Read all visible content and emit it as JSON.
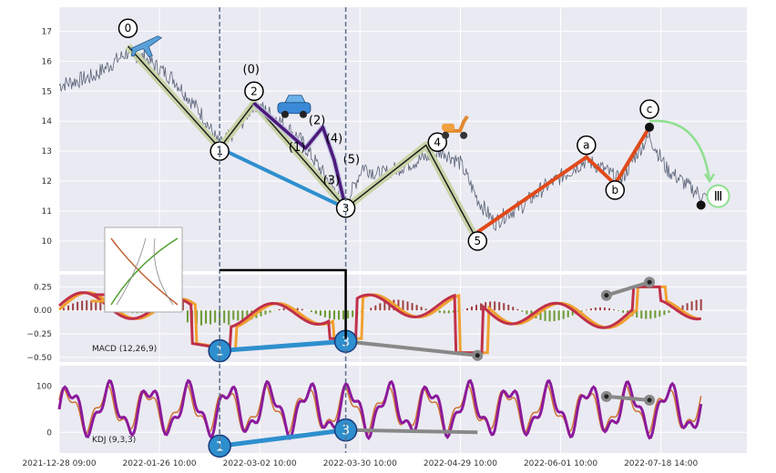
{
  "chart_data": {
    "type": "line",
    "x_tick_labels": [
      "2021-12-28 09:00",
      "2022-01-26 10:00",
      "2022-03-02 10:00",
      "2022-03-30 10:00",
      "2022-04-29 10:00",
      "2022-06-01 10:00",
      "2022-07-18 14:00"
    ],
    "price_panel": {
      "y_ticks": [
        10,
        11,
        12,
        13,
        14,
        15,
        16,
        17
      ],
      "ylim": [
        9,
        17.8
      ],
      "price_path": [
        [
          0,
          15.2
        ],
        [
          6,
          15.5
        ],
        [
          12,
          16.3
        ],
        [
          15,
          16.1
        ],
        [
          20,
          15.4
        ],
        [
          25,
          14.2
        ],
        [
          28,
          13.2
        ],
        [
          31,
          13.7
        ],
        [
          34,
          14.6
        ],
        [
          38,
          14.1
        ],
        [
          42,
          13.4
        ],
        [
          47,
          12.0
        ],
        [
          50,
          11.2
        ],
        [
          53,
          12.5
        ],
        [
          56,
          12.2
        ],
        [
          60,
          12.5
        ],
        [
          64,
          12.8
        ],
        [
          67,
          13.0
        ],
        [
          70,
          12.6
        ],
        [
          73,
          11.4
        ],
        [
          76,
          10.6
        ],
        [
          78,
          10.9
        ],
        [
          81,
          11.2
        ],
        [
          84,
          11.7
        ],
        [
          88,
          12.2
        ],
        [
          92,
          12.7
        ],
        [
          95,
          12.4
        ],
        [
          98,
          12.0
        ],
        [
          101,
          13.0
        ],
        [
          103,
          13.5
        ],
        [
          106,
          12.4
        ],
        [
          110,
          11.8
        ],
        [
          113,
          11.4
        ]
      ],
      "wave_lines": [
        {
          "points": [
            [
              12,
              16.5
            ],
            [
              28,
              13.1
            ],
            [
              34,
              14.6
            ],
            [
              50,
              11.1
            ],
            [
              64,
              13.2
            ],
            [
              73,
              10.0
            ]
          ]
        },
        {
          "points": [
            [
              34,
              14.6
            ],
            [
              43,
              13.1
            ],
            [
              46,
              13.8
            ],
            [
              48,
              12.7
            ],
            [
              50,
              11.1
            ]
          ]
        },
        {
          "points": [
            [
              28,
              13.1
            ],
            [
              50,
              11.1
            ]
          ]
        },
        {
          "points": [
            [
              73,
              10.3
            ],
            [
              92,
              12.8
            ],
            [
              97,
              11.9
            ],
            [
              103,
              13.8
            ]
          ]
        }
      ],
      "wave_labels": [
        {
          "text": "0",
          "x": 12,
          "y": 17.1
        },
        {
          "text": "1",
          "x": 28,
          "y": 13.0
        },
        {
          "text": "2",
          "x": 34,
          "y": 15.0
        },
        {
          "text": "3",
          "x": 50,
          "y": 11.1
        },
        {
          "text": "4",
          "x": 66,
          "y": 13.3
        },
        {
          "text": "5",
          "x": 73,
          "y": 10.0
        },
        {
          "text": "a",
          "x": 92,
          "y": 13.2
        },
        {
          "text": "b",
          "x": 97,
          "y": 11.7
        },
        {
          "text": "c",
          "x": 103,
          "y": 14.4
        }
      ],
      "sub_labels": [
        {
          "text": "(0)",
          "x": 33.5,
          "y": 15.6
        },
        {
          "text": "(1)",
          "x": 41.5,
          "y": 13.0
        },
        {
          "text": "(2)",
          "x": 45,
          "y": 13.9
        },
        {
          "text": "(3)",
          "x": 47.5,
          "y": 11.9
        },
        {
          "text": "(4)",
          "x": 48,
          "y": 13.3
        },
        {
          "text": "(5)",
          "x": 51,
          "y": 12.6
        }
      ],
      "roman_label": "Ⅲ"
    },
    "macd_panel": {
      "label": "MACD (12,26,9)",
      "y_ticks": [
        0.25,
        0.0,
        -0.25,
        -0.5
      ],
      "y_tick_labels": [
        "0.25",
        "0.00",
        "−0.25",
        "−0.50"
      ],
      "ylim": [
        -0.55,
        0.38
      ],
      "markers": [
        {
          "text": "1",
          "x": 28,
          "y": -0.43
        },
        {
          "text": "3",
          "x": 50,
          "y": -0.33
        }
      ]
    },
    "kdj_panel": {
      "label": "KDJ (9,3,3)",
      "y_ticks": [
        100,
        0
      ],
      "y_tick_labels": [
        "100",
        "0"
      ],
      "ylim": [
        -45,
        145
      ],
      "markers": [
        {
          "text": "1",
          "x": 28,
          "y": -30
        },
        {
          "text": "3",
          "x": 50,
          "y": 5
        }
      ]
    },
    "colors": {
      "panel_bg": "#eaeaf2",
      "price": "#5a6478",
      "main_wave": "#1e1e1e",
      "main_wave_halo": "#c8d4a8",
      "sub_wave": "#4b1a7a",
      "blue_line": "#2e8fce",
      "orange_wave": "#e04a1a",
      "macd_orange": "#f0a030",
      "macd_red": "#c0304a",
      "kdj_purple": "#8b1a9b",
      "kdj_orange": "#d07030",
      "gray_div": "#888888",
      "green_arrow": "#90e090",
      "vline": "#5a6f8a"
    },
    "icons": [
      "airplane-icon",
      "car-icon",
      "scooter-icon"
    ]
  }
}
